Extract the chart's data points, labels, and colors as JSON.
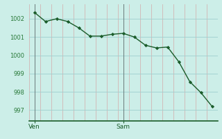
{
  "x": [
    0,
    1,
    2,
    3,
    4,
    5,
    6,
    7,
    8,
    9,
    10,
    11,
    12,
    13,
    14,
    15,
    16
  ],
  "y": [
    1002.35,
    1001.85,
    1002.0,
    1001.85,
    1001.5,
    1001.05,
    1001.05,
    1001.15,
    1001.2,
    1001.0,
    1000.55,
    1000.4,
    1000.45,
    999.65,
    998.55,
    997.95,
    997.2
  ],
  "ven_x": 0,
  "sam_x": 8,
  "x_tick_labels_pos": [
    0,
    8
  ],
  "x_tick_labels": [
    "Ven",
    "Sam"
  ],
  "yticks": [
    997,
    998,
    999,
    1000,
    1001,
    1002
  ],
  "ylim": [
    996.4,
    1002.8
  ],
  "xlim": [
    -0.5,
    16.5
  ],
  "line_color": "#1a5c2a",
  "marker_color": "#1a5c2a",
  "bg_color": "#cceee8",
  "grid_major_color": "#9ecece",
  "grid_minor_color": "#d4aaaa",
  "axis_color": "#1a5c2a",
  "tick_label_color": "#2a7a3a",
  "vline_color": "#6a7a7a"
}
